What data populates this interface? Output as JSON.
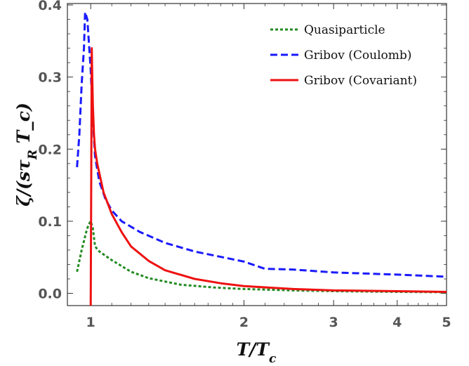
{
  "chart_data": {
    "type": "line",
    "xlabel": "T/T_c",
    "ylabel": "ζ/(sτ_R T_c)",
    "x_scale": "log",
    "xlim": [
      0.9,
      5
    ],
    "ylim": [
      -0.017,
      0.402
    ],
    "x_ticks": [
      1,
      2,
      3,
      4,
      5
    ],
    "x_tick_labels": [
      "1",
      "2",
      "3",
      "4",
      "5"
    ],
    "y_ticks": [
      0.0,
      0.1,
      0.2,
      0.3,
      0.4
    ],
    "y_tick_labels": [
      "0.0",
      "0.1",
      "0.2",
      "0.3",
      "0.4"
    ],
    "grid": false,
    "legend_position": "top-right",
    "series": [
      {
        "name": "Quasiparticle",
        "color": "#228b22",
        "style": "dotted",
        "x": [
          0.94,
          0.96,
          0.98,
          0.99,
          1.0,
          1.01,
          1.02,
          1.04,
          1.1,
          1.2,
          1.3,
          1.5,
          1.75,
          2.0,
          2.5,
          3.0,
          4.0,
          5.0
        ],
        "y": [
          0.03,
          0.06,
          0.085,
          0.095,
          0.1,
          0.09,
          0.065,
          0.058,
          0.046,
          0.03,
          0.021,
          0.012,
          0.008,
          0.006,
          0.004,
          0.003,
          0.002,
          0.0015
        ]
      },
      {
        "name": "Gribov (Coulomb)",
        "color": "#1a1aff",
        "style": "dashed",
        "x": [
          0.94,
          0.95,
          0.96,
          0.97,
          0.975,
          0.985,
          1.0,
          1.01,
          1.02,
          1.04,
          1.07,
          1.1,
          1.15,
          1.25,
          1.4,
          1.6,
          2.0,
          2.2,
          2.5,
          3.0,
          4.0,
          5.0
        ],
        "y": [
          0.175,
          0.22,
          0.29,
          0.34,
          0.39,
          0.38,
          0.31,
          0.24,
          0.19,
          0.155,
          0.13,
          0.115,
          0.1,
          0.085,
          0.07,
          0.058,
          0.044,
          0.034,
          0.033,
          0.029,
          0.026,
          0.023
        ]
      },
      {
        "name": "Gribov (Covariant)",
        "color": "#ee1111",
        "style": "solid",
        "x": [
          1.0,
          1.005,
          1.007,
          1.01,
          1.015,
          1.02,
          1.03,
          1.06,
          1.1,
          1.15,
          1.2,
          1.3,
          1.4,
          1.6,
          1.8,
          2.0,
          2.5,
          3.0,
          4.0,
          5.0
        ],
        "y": [
          -0.017,
          0.34,
          0.3,
          0.26,
          0.22,
          0.2,
          0.18,
          0.14,
          0.11,
          0.085,
          0.065,
          0.045,
          0.032,
          0.02,
          0.014,
          0.01,
          0.006,
          0.004,
          0.003,
          0.002
        ]
      }
    ]
  }
}
